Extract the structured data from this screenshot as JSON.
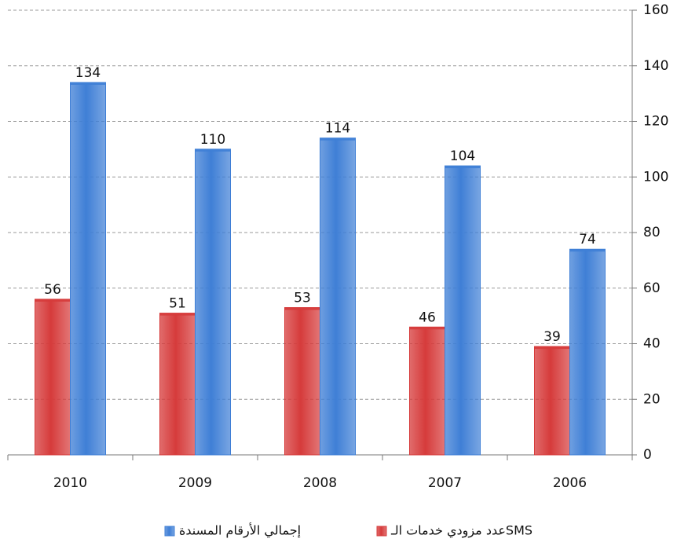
{
  "chart_data": {
    "type": "bar",
    "categories": [
      "2010",
      "2009",
      "2008",
      "2007",
      "2006"
    ],
    "series": [
      {
        "name": "عدد مزودي خدمات الـSMS",
        "color": "#d63b3b",
        "values": [
          56,
          51,
          53,
          46,
          39
        ]
      },
      {
        "name": "إجمالي الأرقام المسندة",
        "color": "#3f7fd6",
        "values": [
          134,
          110,
          114,
          104,
          74
        ]
      }
    ],
    "ylim": [
      0,
      160
    ],
    "yticks": [
      0,
      20,
      40,
      60,
      80,
      100,
      120,
      140,
      160
    ],
    "grid": true,
    "legend": "bottom"
  }
}
